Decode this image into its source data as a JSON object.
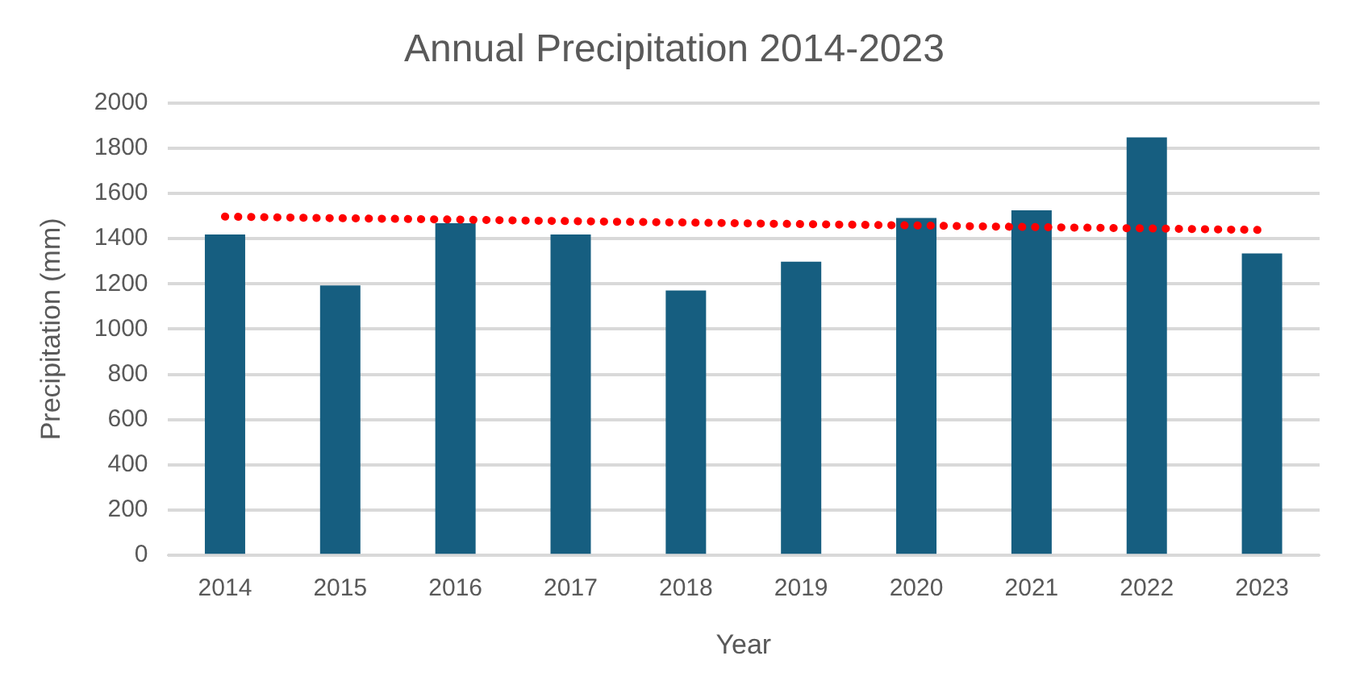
{
  "chart_data": {
    "type": "bar",
    "title": "Annual Precipitation 2014-2023",
    "xlabel": "Year",
    "ylabel": "Precipitation (mm)",
    "categories": [
      "2014",
      "2015",
      "2016",
      "2017",
      "2018",
      "2019",
      "2020",
      "2021",
      "2022",
      "2023"
    ],
    "series": [
      {
        "color": "#165e80",
        "values": [
          1418,
          1193,
          1468,
          1418,
          1171,
          1298,
          1491,
          1525,
          1847,
          1334
        ]
      },
      {
        "type": "line",
        "color": "#ff0000",
        "line_style": "dotted",
        "values": [
          1497,
          1490,
          1484,
          1477,
          1471,
          1464,
          1458,
          1451,
          1445,
          1438
        ]
      }
    ],
    "ylim": [
      0,
      2000
    ],
    "yticks": [
      0,
      200,
      400,
      600,
      800,
      1000,
      1200,
      1400,
      1600,
      1800,
      2000
    ],
    "grid": "y",
    "legend": false
  }
}
